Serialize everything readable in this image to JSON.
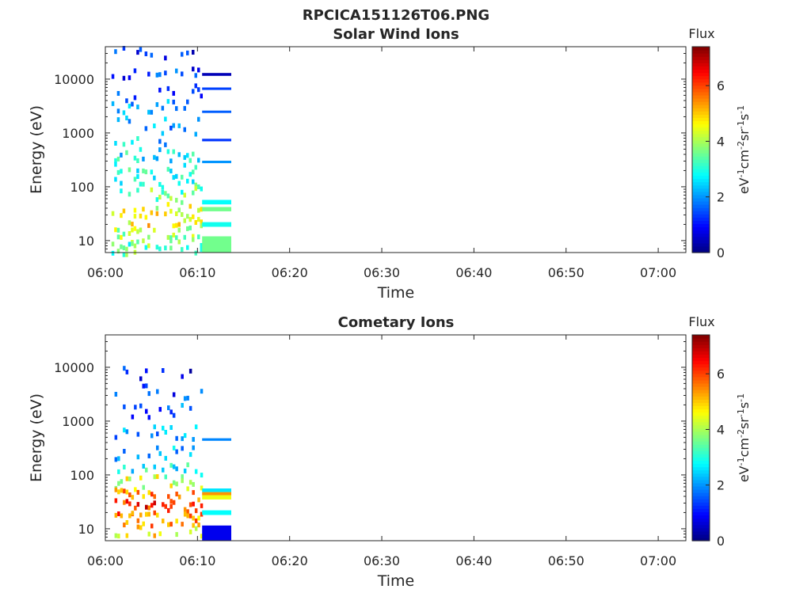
{
  "figure_title": "RPCICA151126T06.PNG",
  "chart_data": [
    {
      "type": "heatmap",
      "title": "Solar Wind Ions",
      "xlabel": "Time",
      "ylabel": "Energy (eV)",
      "x_range": [
        "06:00",
        "07:03"
      ],
      "x_ticks": [
        "06:00",
        "06:10",
        "06:20",
        "06:30",
        "06:40",
        "06:50",
        "07:00"
      ],
      "y_scale": "log",
      "y_range": [
        6,
        40000
      ],
      "y_ticks": [
        "10",
        "100",
        "1000",
        "10000"
      ],
      "colorbar": {
        "title": "Flux",
        "label": "eV-1cm-2sr-1s-1",
        "range": [
          0,
          7.4
        ],
        "ticks": [
          "0",
          "2",
          "4",
          "6"
        ],
        "colormap": "jet"
      },
      "grid": false,
      "cells": [
        {
          "t0": "06:00:40",
          "t1": "06:10:30",
          "e": 30000,
          "v": 1.0
        },
        {
          "t0": "06:00:40",
          "t1": "06:10:30",
          "e": 12000,
          "v": 1.2
        },
        {
          "t0": "06:00:40",
          "t1": "06:10:30",
          "e": 6000,
          "v": 1.5
        },
        {
          "t0": "06:00:40",
          "t1": "06:10:30",
          "e": 3000,
          "v": 1.9
        },
        {
          "t0": "06:00:40",
          "t1": "06:10:30",
          "e": 1500,
          "v": 2.1
        },
        {
          "t0": "06:00:40",
          "t1": "06:10:30",
          "e": 800,
          "v": 2.4
        },
        {
          "t0": "06:00:40",
          "t1": "06:10:30",
          "e": 400,
          "v": 2.7
        },
        {
          "t0": "06:00:40",
          "t1": "06:10:30",
          "e": 200,
          "v": 3.0
        },
        {
          "t0": "06:00:40",
          "t1": "06:10:30",
          "e": 120,
          "v": 3.2
        },
        {
          "t0": "06:00:40",
          "t1": "06:10:30",
          "e": 70,
          "v": 3.5
        },
        {
          "t0": "06:00:40",
          "t1": "06:10:30",
          "e": 40,
          "v": 4.3
        },
        {
          "t0": "06:00:40",
          "t1": "06:10:30",
          "e": 25,
          "v": 4.7
        },
        {
          "t0": "06:00:40",
          "t1": "06:10:30",
          "e": 15,
          "v": 4.0
        },
        {
          "t0": "06:00:40",
          "t1": "06:10:30",
          "e": 9,
          "v": 3.6
        },
        {
          "t0": "06:00:40",
          "t1": "06:10:30",
          "e": 7,
          "v": 3.4
        }
      ],
      "bands": [
        {
          "t0": "06:10:30",
          "t1": "06:13:40",
          "e0": 11500,
          "e1": 13000,
          "v": 0.4
        },
        {
          "t0": "06:10:30",
          "t1": "06:13:40",
          "e0": 6300,
          "e1": 7000,
          "v": 1.4
        },
        {
          "t0": "06:10:30",
          "t1": "06:13:40",
          "e0": 2350,
          "e1": 2600,
          "v": 1.6
        },
        {
          "t0": "06:10:30",
          "t1": "06:13:40",
          "e0": 700,
          "e1": 780,
          "v": 1.3
        },
        {
          "t0": "06:10:30",
          "t1": "06:13:40",
          "e0": 275,
          "e1": 305,
          "v": 2.0
        },
        {
          "t0": "06:10:30",
          "t1": "06:13:40",
          "e0": 47,
          "e1": 57,
          "v": 2.8
        },
        {
          "t0": "06:10:30",
          "t1": "06:13:40",
          "e0": 35,
          "e1": 42,
          "v": 3.6
        },
        {
          "t0": "06:10:30",
          "t1": "06:13:40",
          "e0": 18,
          "e1": 22,
          "v": 2.9
        },
        {
          "t0": "06:10:30",
          "t1": "06:13:40",
          "e0": 6,
          "e1": 12,
          "v": 3.6
        }
      ]
    },
    {
      "type": "heatmap",
      "title": "Cometary Ions",
      "xlabel": "Time",
      "ylabel": "Energy (eV)",
      "x_range": [
        "06:00",
        "07:03"
      ],
      "x_ticks": [
        "06:00",
        "06:10",
        "06:20",
        "06:30",
        "06:40",
        "06:50",
        "07:00"
      ],
      "y_scale": "log",
      "y_range": [
        6,
        40000
      ],
      "y_ticks": [
        "10",
        "100",
        "1000",
        "10000"
      ],
      "colorbar": {
        "title": "Flux",
        "label": "eV-1cm-2sr-1s-1",
        "range": [
          0,
          7.4
        ],
        "ticks": [
          "0",
          "2",
          "4",
          "6"
        ],
        "colormap": "jet"
      },
      "grid": false,
      "cells": [
        {
          "t0": "06:01:00",
          "t1": "06:10:30",
          "e": 8000,
          "v": 1.0
        },
        {
          "t0": "06:01:00",
          "t1": "06:10:30",
          "e": 3500,
          "v": 1.3
        },
        {
          "t0": "06:01:00",
          "t1": "06:10:30",
          "e": 1500,
          "v": 1.6
        },
        {
          "t0": "06:01:00",
          "t1": "06:10:30",
          "e": 600,
          "v": 2.0
        },
        {
          "t0": "06:01:00",
          "t1": "06:10:30",
          "e": 250,
          "v": 2.4
        },
        {
          "t0": "06:01:00",
          "t1": "06:10:30",
          "e": 120,
          "v": 2.9
        },
        {
          "t0": "06:01:00",
          "t1": "06:10:30",
          "e": 70,
          "v": 4.2
        },
        {
          "t0": "06:01:00",
          "t1": "06:10:30",
          "e": 40,
          "v": 5.6
        },
        {
          "t0": "06:01:00",
          "t1": "06:10:30",
          "e": 25,
          "v": 6.2
        },
        {
          "t0": "06:01:00",
          "t1": "06:10:30",
          "e": 15,
          "v": 5.4
        },
        {
          "t0": "06:01:00",
          "t1": "06:10:30",
          "e": 9,
          "v": 4.6
        }
      ],
      "bands": [
        {
          "t0": "06:10:30",
          "t1": "06:13:40",
          "e0": 430,
          "e1": 480,
          "v": 1.9
        },
        {
          "t0": "06:10:30",
          "t1": "06:13:40",
          "e0": 48,
          "e1": 56,
          "v": 2.6
        },
        {
          "t0": "06:10:30",
          "t1": "06:13:40",
          "e0": 42,
          "e1": 48,
          "v": 5.4
        },
        {
          "t0": "06:10:30",
          "t1": "06:13:40",
          "e0": 35,
          "e1": 42,
          "v": 4.5
        },
        {
          "t0": "06:10:30",
          "t1": "06:13:40",
          "e0": 18,
          "e1": 22,
          "v": 2.8
        },
        {
          "t0": "06:10:30",
          "t1": "06:13:40",
          "e0": 6,
          "e1": 11.5,
          "v": 0.8
        }
      ]
    }
  ]
}
